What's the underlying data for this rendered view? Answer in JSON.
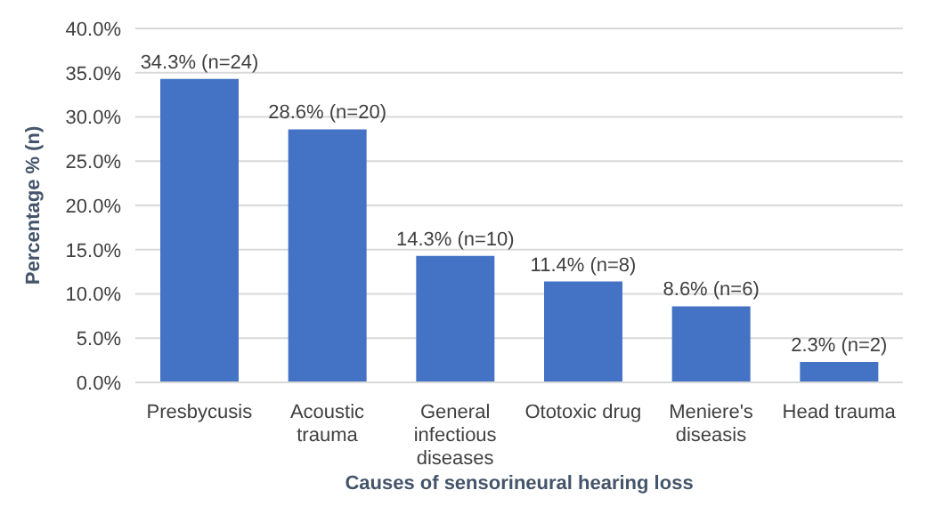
{
  "chart_data": {
    "type": "bar",
    "xlabel": "Causes of sensorineural hearing loss",
    "ylabel": "Percentage % (n)",
    "categories": [
      "Presbycusis",
      "Acoustic trauma",
      "General infectious diseases",
      "Ototoxic drug",
      "Meniere's diseasis",
      "Head trauma"
    ],
    "values": [
      34.3,
      28.6,
      14.3,
      11.4,
      8.6,
      2.3
    ],
    "value_labels": [
      "34.3% (n=24)",
      "28.6% (n=20)",
      "14.3% (n=10)",
      "11.4% (n=8)",
      "8.6% (n=6)",
      "2.3% (n=2)"
    ],
    "color": "#4472c4",
    "ylim": [
      0,
      40
    ],
    "yticks": [
      {
        "value": 0,
        "label": "0.0%"
      },
      {
        "value": 5,
        "label": "5.0%"
      },
      {
        "value": 10,
        "label": "10.0%"
      },
      {
        "value": 15,
        "label": "15.0%"
      },
      {
        "value": 20,
        "label": "20.0%"
      },
      {
        "value": 25,
        "label": "25.0%"
      },
      {
        "value": 30,
        "label": "30.0%"
      },
      {
        "value": 35,
        "label": "35.0%"
      },
      {
        "value": 40,
        "label": "40.0%"
      }
    ],
    "grid": "y",
    "legend": false
  }
}
